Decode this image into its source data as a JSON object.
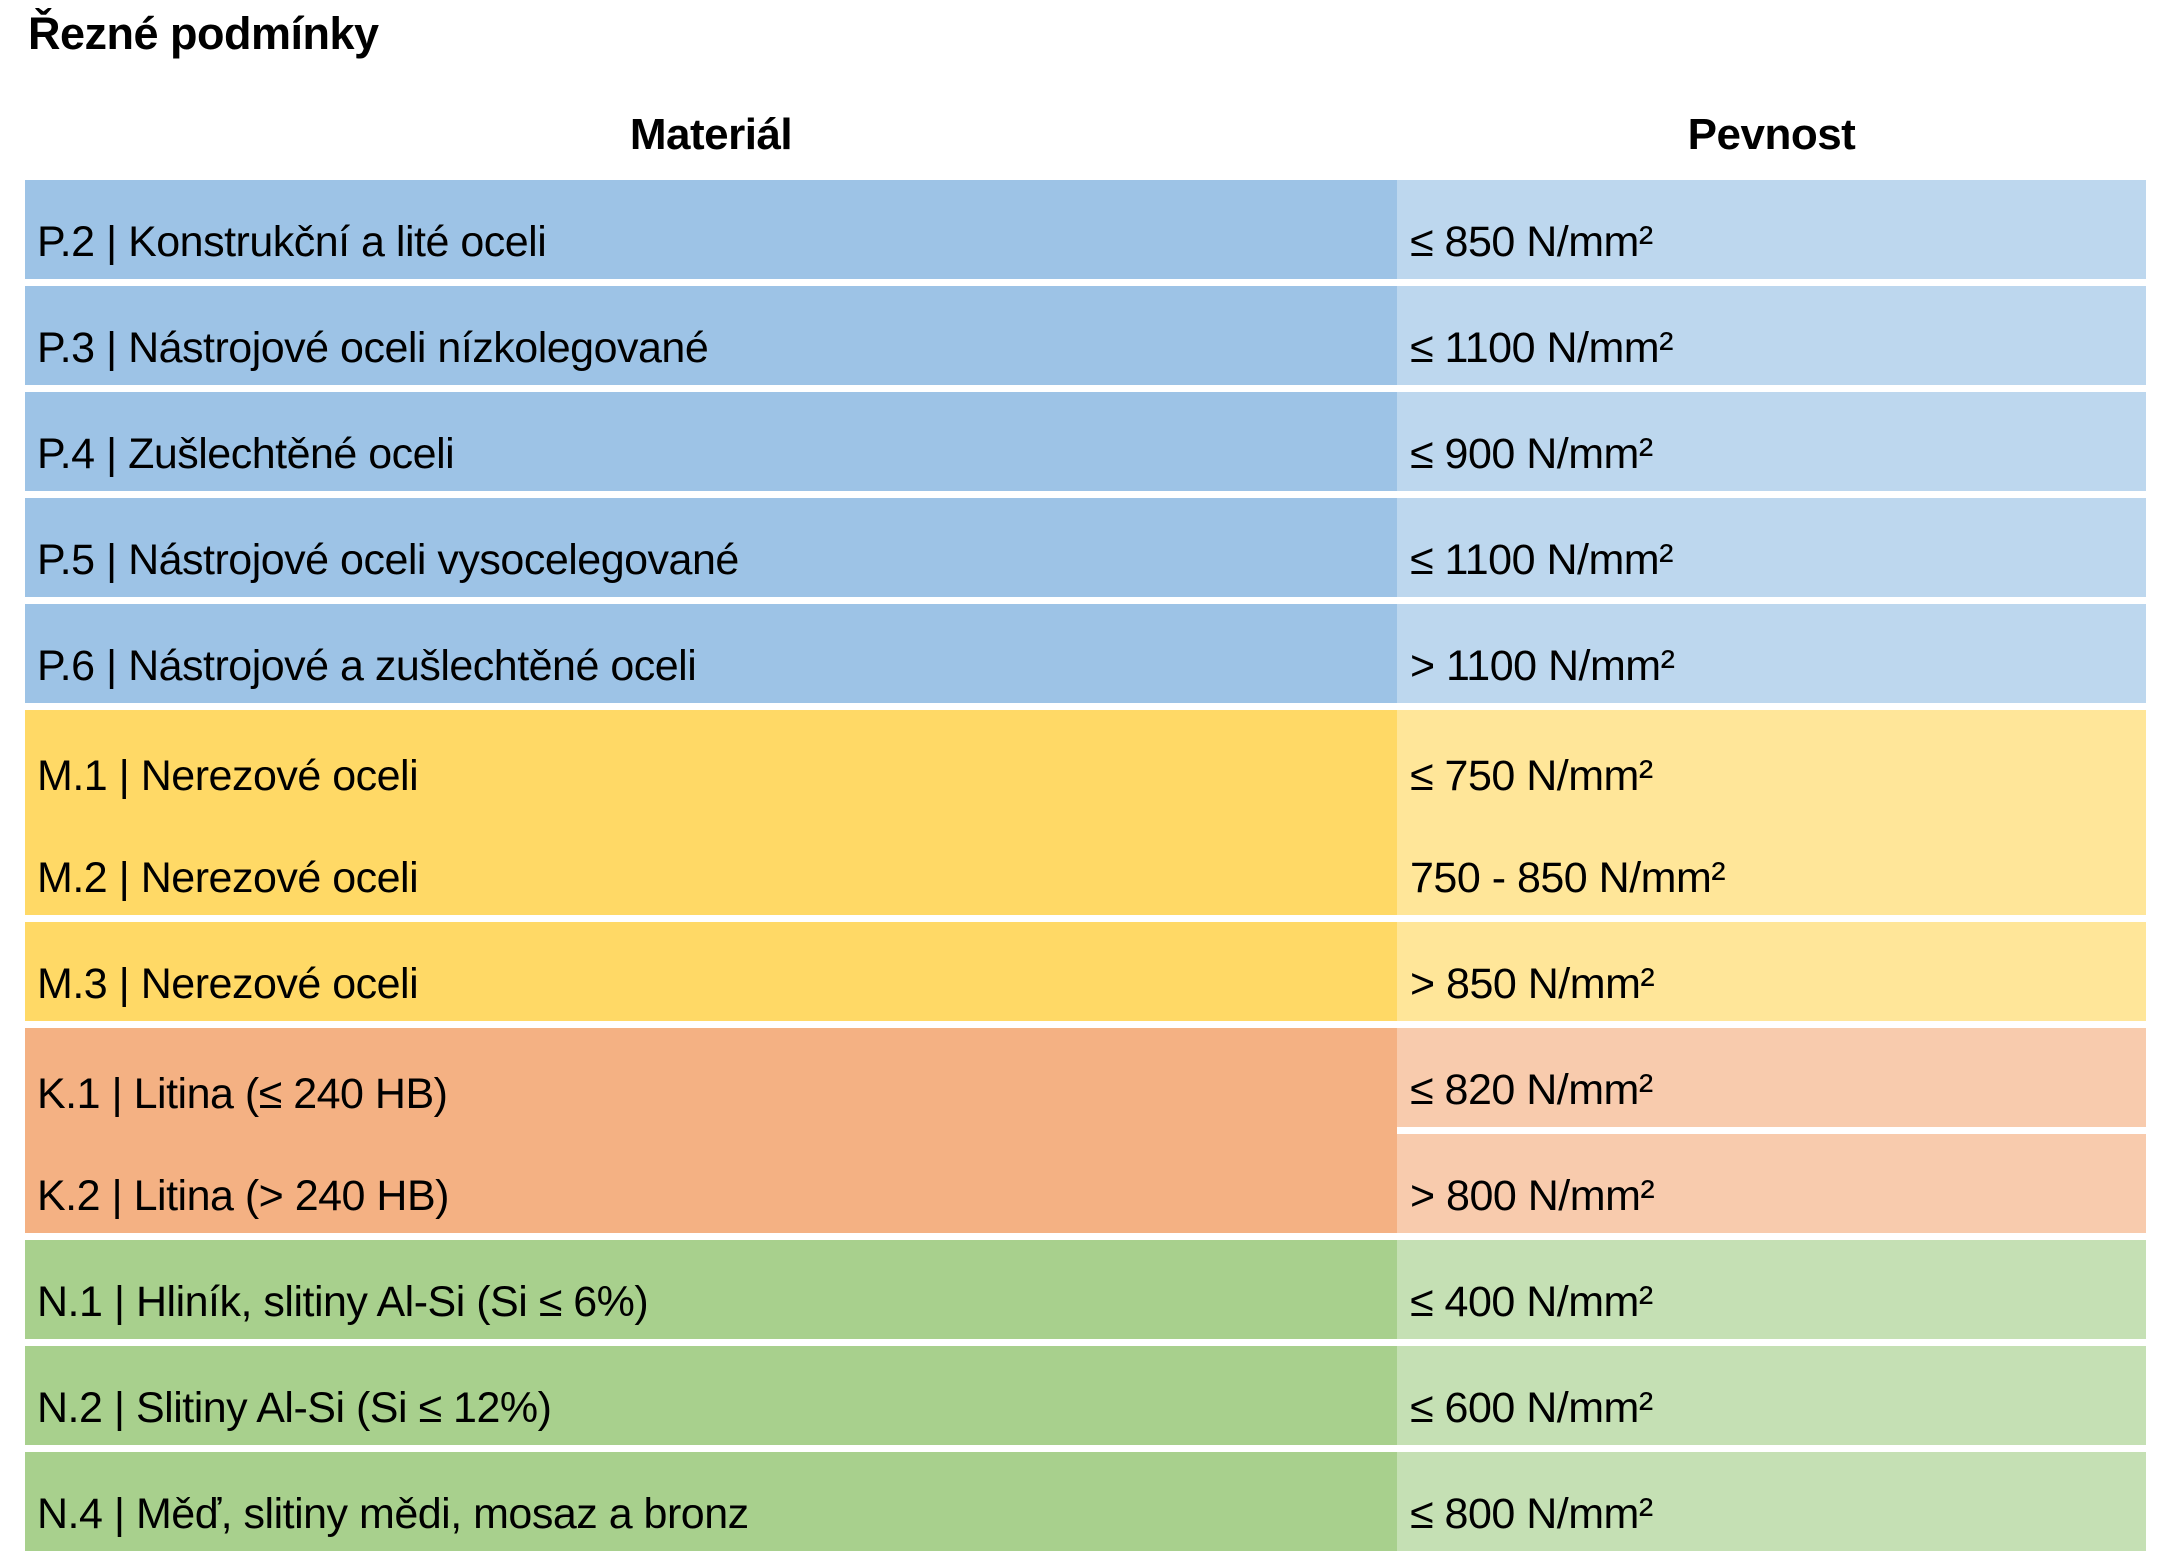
{
  "title": "Řezné podmínky",
  "table": {
    "columns": [
      "Materiál",
      "Pevnost"
    ],
    "rows": [
      {
        "group": "P",
        "material": "P.2 | Konstrukční a lité oceli",
        "pevnost": "≤ 850 N/mm²"
      },
      {
        "group": "P",
        "material": "P.3 | Nástrojové oceli nízkolegované",
        "pevnost": "≤ 1100 N/mm²"
      },
      {
        "group": "P",
        "material": "P.4 | Zušlechtěné oceli",
        "pevnost": "≤ 900 N/mm²"
      },
      {
        "group": "P",
        "material": "P.5 | Nástrojové oceli vysocelegované",
        "pevnost": "≤ 1100 N/mm²"
      },
      {
        "group": "P",
        "material": "P.6 | Nástrojové a zušlechtěné oceli",
        "pevnost": "> 1100 N/mm²"
      },
      {
        "group": "M",
        "material": "M.1 | Nerezové oceli",
        "pevnost": "≤ 750 N/mm²"
      },
      {
        "group": "M",
        "material": "M.2 | Nerezové oceli",
        "pevnost": "750 - 850 N/mm²"
      },
      {
        "group": "M",
        "material": "M.3 | Nerezové oceli",
        "pevnost": "> 850 N/mm²"
      },
      {
        "group": "K",
        "material": "K.1 | Litina (≤ 240 HB)",
        "pevnost": "≤ 820 N/mm²"
      },
      {
        "group": "K",
        "material": "K.2 | Litina (> 240 HB)",
        "pevnost": "> 800 N/mm²"
      },
      {
        "group": "N",
        "material": "N.1 | Hliník, slitiny Al-Si (Si ≤ 6%)",
        "pevnost": "≤ 400 N/mm²"
      },
      {
        "group": "N",
        "material": "N.2 | Slitiny Al-Si (Si ≤ 12%)",
        "pevnost": "≤ 600 N/mm²"
      },
      {
        "group": "N",
        "material": "N.4 | Měď, slitiny mědi, mosaz a bronz",
        "pevnost": "≤ 800 N/mm²"
      }
    ]
  },
  "colors": {
    "group_p_material": "#9DC3E6",
    "group_p_pevnost": "#BDD7EE",
    "group_m_material": "#FFD966",
    "group_m_pevnost": "#FFE699",
    "group_k_material": "#F4B183",
    "group_k_pevnost": "#F8CBAD",
    "group_n_material": "#A8D08D",
    "group_n_pevnost": "#C5E0B4",
    "text": "#000000",
    "background": "#FFFFFF"
  }
}
